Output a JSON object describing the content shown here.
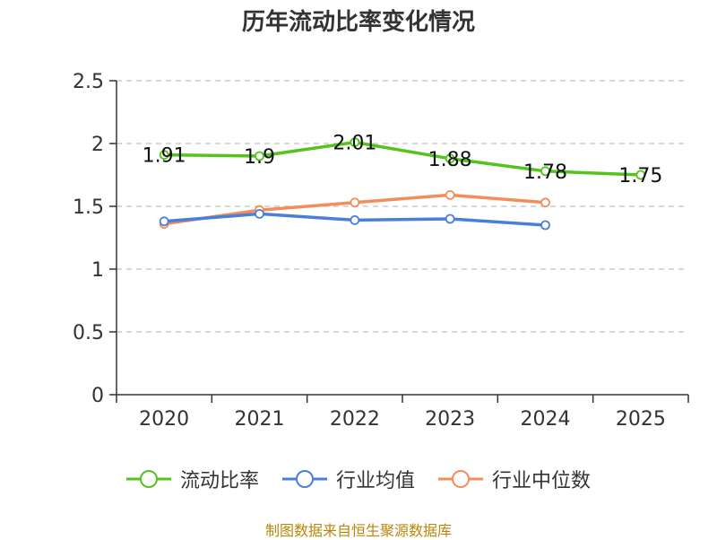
{
  "chart_data": {
    "type": "line",
    "title": "历年流动比率变化情况",
    "categories": [
      "2020",
      "2021",
      "2022",
      "2023",
      "2024",
      "2025"
    ],
    "ylim": [
      0,
      2.5
    ],
    "yticks": [
      "0",
      "0.5",
      "1",
      "1.5",
      "2",
      "2.5"
    ],
    "ytick_values": [
      0,
      0.5,
      1,
      1.5,
      2,
      2.5
    ],
    "grid": true,
    "legend_position": "bottom",
    "series": [
      {
        "name": "流动比率",
        "color": "#52c41a",
        "values": [
          1.91,
          1.9,
          2.01,
          1.88,
          1.78,
          1.75
        ],
        "labels": [
          "1.91",
          "1.9",
          "2.01",
          "1.88",
          "1.78",
          "1.75"
        ]
      },
      {
        "name": "行业均值",
        "color": "#4a7fd9",
        "values": [
          1.38,
          1.44,
          1.39,
          1.4,
          1.35,
          null
        ]
      },
      {
        "name": "行业中位数",
        "color": "#f28e5c",
        "values": [
          1.36,
          1.47,
          1.53,
          1.59,
          1.53,
          null
        ]
      }
    ]
  },
  "footer": {
    "source": "制图数据来自恒生聚源数据库"
  }
}
